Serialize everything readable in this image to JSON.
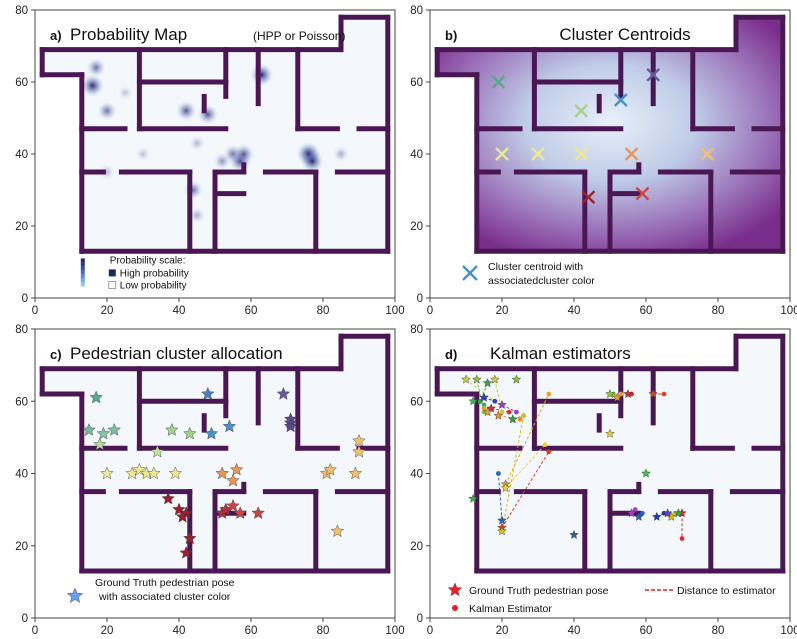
{
  "figure": {
    "axis_ticks_x": [
      "0",
      "20",
      "40",
      "60",
      "80",
      "100"
    ],
    "axis_ticks_y": [
      "0",
      "20",
      "40",
      "60",
      "80"
    ]
  },
  "colors": {
    "wall": "#4a1754",
    "floor": "#f4f8fc",
    "gt_star": "#e8202a",
    "kalman_dot": "#e8202a",
    "dist_line": "#e8202a",
    "centroid_legend": "#4a90c8"
  },
  "chart_data": [
    {
      "type": "heatmap",
      "panel_id": "a)",
      "title": "Probability Map",
      "title_suffix": "(HPP or Poisson)",
      "xlim": [
        0,
        100
      ],
      "ylim": [
        0,
        80
      ],
      "legend": {
        "title": "Probability scale:",
        "high": "High probability",
        "low": "Low probability",
        "placement": "bottom-left"
      },
      "hotspots": [
        {
          "x": 16,
          "y": 59,
          "level": 0.9
        },
        {
          "x": 17,
          "y": 64,
          "level": 0.6
        },
        {
          "x": 20,
          "y": 52,
          "level": 0.6
        },
        {
          "x": 42,
          "y": 52,
          "level": 0.7
        },
        {
          "x": 48,
          "y": 51,
          "level": 0.7
        },
        {
          "x": 55,
          "y": 40,
          "level": 0.6
        },
        {
          "x": 57,
          "y": 38,
          "level": 0.8
        },
        {
          "x": 58,
          "y": 40,
          "level": 0.7
        },
        {
          "x": 76,
          "y": 40,
          "level": 1.0
        },
        {
          "x": 77,
          "y": 38,
          "level": 0.9
        },
        {
          "x": 44,
          "y": 30,
          "level": 0.6
        },
        {
          "x": 63,
          "y": 62,
          "level": 0.9
        },
        {
          "x": 45,
          "y": 43,
          "level": 0.3
        },
        {
          "x": 30,
          "y": 40,
          "level": 0.25
        },
        {
          "x": 85,
          "y": 40,
          "level": 0.35
        },
        {
          "x": 45,
          "y": 23,
          "level": 0.35
        },
        {
          "x": 20,
          "y": 35,
          "level": 0.3
        },
        {
          "x": 25,
          "y": 57,
          "level": 0.25
        },
        {
          "x": 52,
          "y": 38,
          "level": 0.45
        }
      ]
    },
    {
      "type": "scatter",
      "panel_id": "b)",
      "title": "Cluster Centroids",
      "xlim": [
        0,
        100
      ],
      "ylim": [
        0,
        80
      ],
      "legend": {
        "label": "Cluster centroid with associatedcluster  color",
        "placement": "bottom-left"
      },
      "points": [
        {
          "x": 19,
          "y": 60,
          "color": "#5aa88c"
        },
        {
          "x": 20,
          "y": 40,
          "color": "#e8ea98"
        },
        {
          "x": 30,
          "y": 40,
          "color": "#f0e890"
        },
        {
          "x": 42,
          "y": 52,
          "color": "#a4d08c"
        },
        {
          "x": 42,
          "y": 40,
          "color": "#f0e890"
        },
        {
          "x": 44,
          "y": 28,
          "color": "#9a2030"
        },
        {
          "x": 53,
          "y": 55,
          "color": "#4a90c8"
        },
        {
          "x": 56,
          "y": 40,
          "color": "#e8965a"
        },
        {
          "x": 59,
          "y": 29,
          "color": "#c44848"
        },
        {
          "x": 62,
          "y": 62,
          "color": "#6a5a9a"
        },
        {
          "x": 77,
          "y": 40,
          "color": "#f0c070"
        }
      ]
    },
    {
      "type": "scatter",
      "panel_id": "c)",
      "title": "Pedestrian cluster allocation",
      "xlim": [
        0,
        100
      ],
      "ylim": [
        0,
        80
      ],
      "legend": {
        "label": "Ground Truth pedestrian pose with associated cluster color",
        "line1": "Ground Truth pedestrian pose",
        "line2": "with associated cluster color",
        "placement": "bottom-left"
      },
      "points": [
        {
          "x": 17,
          "y": 61,
          "color": "#5aa88c"
        },
        {
          "x": 15,
          "y": 52,
          "color": "#78b898"
        },
        {
          "x": 19,
          "y": 51,
          "color": "#88c0a4"
        },
        {
          "x": 22,
          "y": 52,
          "color": "#80bca0"
        },
        {
          "x": 18,
          "y": 48,
          "color": "#b8dc9c"
        },
        {
          "x": 20,
          "y": 40,
          "color": "#e8ea98"
        },
        {
          "x": 27,
          "y": 40,
          "color": "#f0e890"
        },
        {
          "x": 29,
          "y": 41,
          "color": "#f0e890"
        },
        {
          "x": 31,
          "y": 40,
          "color": "#f0e890"
        },
        {
          "x": 33,
          "y": 40,
          "color": "#f0e890"
        },
        {
          "x": 34,
          "y": 46,
          "color": "#c4e09c"
        },
        {
          "x": 38,
          "y": 52,
          "color": "#a4d08c"
        },
        {
          "x": 43,
          "y": 51,
          "color": "#a4d08c"
        },
        {
          "x": 39,
          "y": 40,
          "color": "#f0e890"
        },
        {
          "x": 48,
          "y": 62,
          "color": "#4a80c0"
        },
        {
          "x": 49,
          "y": 51,
          "color": "#4a90c8"
        },
        {
          "x": 54,
          "y": 53,
          "color": "#4a90c8"
        },
        {
          "x": 69,
          "y": 62,
          "color": "#6a5a9a"
        },
        {
          "x": 71,
          "y": 54,
          "color": "#5a4a8a"
        },
        {
          "x": 71,
          "y": 55,
          "color": "#5a4a8a"
        },
        {
          "x": 71,
          "y": 53,
          "color": "#5a4a8a"
        },
        {
          "x": 52,
          "y": 40,
          "color": "#e8965a"
        },
        {
          "x": 55,
          "y": 38,
          "color": "#e8965a"
        },
        {
          "x": 56,
          "y": 41,
          "color": "#e8965a"
        },
        {
          "x": 81,
          "y": 40,
          "color": "#f0c070"
        },
        {
          "x": 82,
          "y": 41,
          "color": "#f0c070"
        },
        {
          "x": 90,
          "y": 49,
          "color": "#f0c070"
        },
        {
          "x": 90,
          "y": 46,
          "color": "#f0c070"
        },
        {
          "x": 89,
          "y": 40,
          "color": "#f0c070"
        },
        {
          "x": 84,
          "y": 24,
          "color": "#f0c070"
        },
        {
          "x": 37,
          "y": 33,
          "color": "#9a2030"
        },
        {
          "x": 40,
          "y": 30,
          "color": "#9a2030"
        },
        {
          "x": 42,
          "y": 29,
          "color": "#9a2030"
        },
        {
          "x": 41,
          "y": 28,
          "color": "#9a2030"
        },
        {
          "x": 43,
          "y": 22,
          "color": "#9a2030"
        },
        {
          "x": 42,
          "y": 18,
          "color": "#9a2030"
        },
        {
          "x": 52,
          "y": 29,
          "color": "#b03040"
        },
        {
          "x": 53,
          "y": 30,
          "color": "#b03040"
        },
        {
          "x": 55,
          "y": 31,
          "color": "#c44848"
        },
        {
          "x": 57,
          "y": 29,
          "color": "#c44848"
        },
        {
          "x": 62,
          "y": 29,
          "color": "#c44848"
        }
      ]
    },
    {
      "type": "scatter",
      "panel_id": "d)",
      "title": "Kalman estimators",
      "xlim": [
        0,
        100
      ],
      "ylim": [
        0,
        80
      ],
      "legend": {
        "gt_label": "Ground Truth pedestrian pose",
        "kalman_label": "Kalman Estimator",
        "dist_label": "Distance to estimator",
        "placement": "bottom"
      },
      "pairs": [
        {
          "gt": [
            10,
            66
          ],
          "est": [
            18,
            60
          ],
          "color": "#c8d040"
        },
        {
          "gt": [
            13,
            66
          ],
          "est": [
            15,
            57
          ],
          "color": "#8ac040"
        },
        {
          "gt": [
            16,
            65
          ],
          "est": [
            14,
            60
          ],
          "color": "#40a040"
        },
        {
          "gt": [
            18,
            66
          ],
          "est": [
            20,
            57
          ],
          "color": "#d0c840"
        },
        {
          "gt": [
            12,
            60
          ],
          "est": [
            15,
            59
          ],
          "color": "#40b060"
        },
        {
          "gt": [
            15,
            61
          ],
          "est": [
            18,
            60
          ],
          "color": "#3040c0"
        },
        {
          "gt": [
            17,
            58
          ],
          "est": [
            22,
            57
          ],
          "color": "#d03030"
        },
        {
          "gt": [
            20,
            59
          ],
          "est": [
            24,
            57
          ],
          "color": "#a040c0"
        },
        {
          "gt": [
            16,
            57
          ],
          "est": [
            15,
            58
          ],
          "color": "#e0a030"
        },
        {
          "gt": [
            19,
            56
          ],
          "est": [
            25,
            55
          ],
          "color": "#f09020"
        },
        {
          "gt": [
            23,
            55
          ],
          "est": [
            26,
            56
          ],
          "color": "#30a040"
        },
        {
          "gt": [
            21,
            37
          ],
          "est": [
            33,
            62
          ],
          "color": "#f0a020"
        },
        {
          "gt": [
            20,
            27
          ],
          "est": [
            19,
            40
          ],
          "color": "#3060c0"
        },
        {
          "gt": [
            20,
            25
          ],
          "est": [
            33,
            46
          ],
          "color": "#e04020"
        },
        {
          "gt": [
            20,
            24
          ],
          "est": [
            26,
            56
          ],
          "color": "#d0c020"
        },
        {
          "gt": [
            21,
            36
          ],
          "est": [
            32,
            48
          ],
          "color": "#f0d040"
        },
        {
          "gt": [
            50,
            62
          ],
          "est": [
            51,
            62
          ],
          "color": "#90c040"
        },
        {
          "gt": [
            52,
            61
          ],
          "est": [
            53,
            62
          ],
          "color": "#e0a030"
        },
        {
          "gt": [
            55,
            62
          ],
          "est": [
            56,
            62
          ],
          "color": "#d03030"
        },
        {
          "gt": [
            62,
            62
          ],
          "est": [
            65,
            62
          ],
          "color": "#e04020"
        },
        {
          "gt": [
            56,
            29
          ],
          "est": [
            57,
            30
          ],
          "color": "#a040c0"
        },
        {
          "gt": [
            58,
            28
          ],
          "est": [
            59,
            29
          ],
          "color": "#3060c0"
        },
        {
          "gt": [
            63,
            28
          ],
          "est": [
            65,
            29
          ],
          "color": "#2040a0"
        },
        {
          "gt": [
            67,
            28
          ],
          "est": [
            68,
            29
          ],
          "color": "#d0c020"
        },
        {
          "gt": [
            70,
            29
          ],
          "est": [
            70,
            22
          ],
          "color": "#d03030"
        }
      ],
      "singles": [
        {
          "x": 12,
          "y": 33,
          "color": "#40b040"
        },
        {
          "x": 50,
          "y": 51,
          "color": "#e0d040"
        },
        {
          "x": 60,
          "y": 40,
          "color": "#40c040"
        },
        {
          "x": 40,
          "y": 23,
          "color": "#30609a"
        },
        {
          "x": 24,
          "y": 66,
          "color": "#8ac040"
        },
        {
          "x": 66,
          "y": 29,
          "color": "#6040c0"
        },
        {
          "x": 69,
          "y": 29,
          "color": "#40a040"
        }
      ]
    }
  ]
}
